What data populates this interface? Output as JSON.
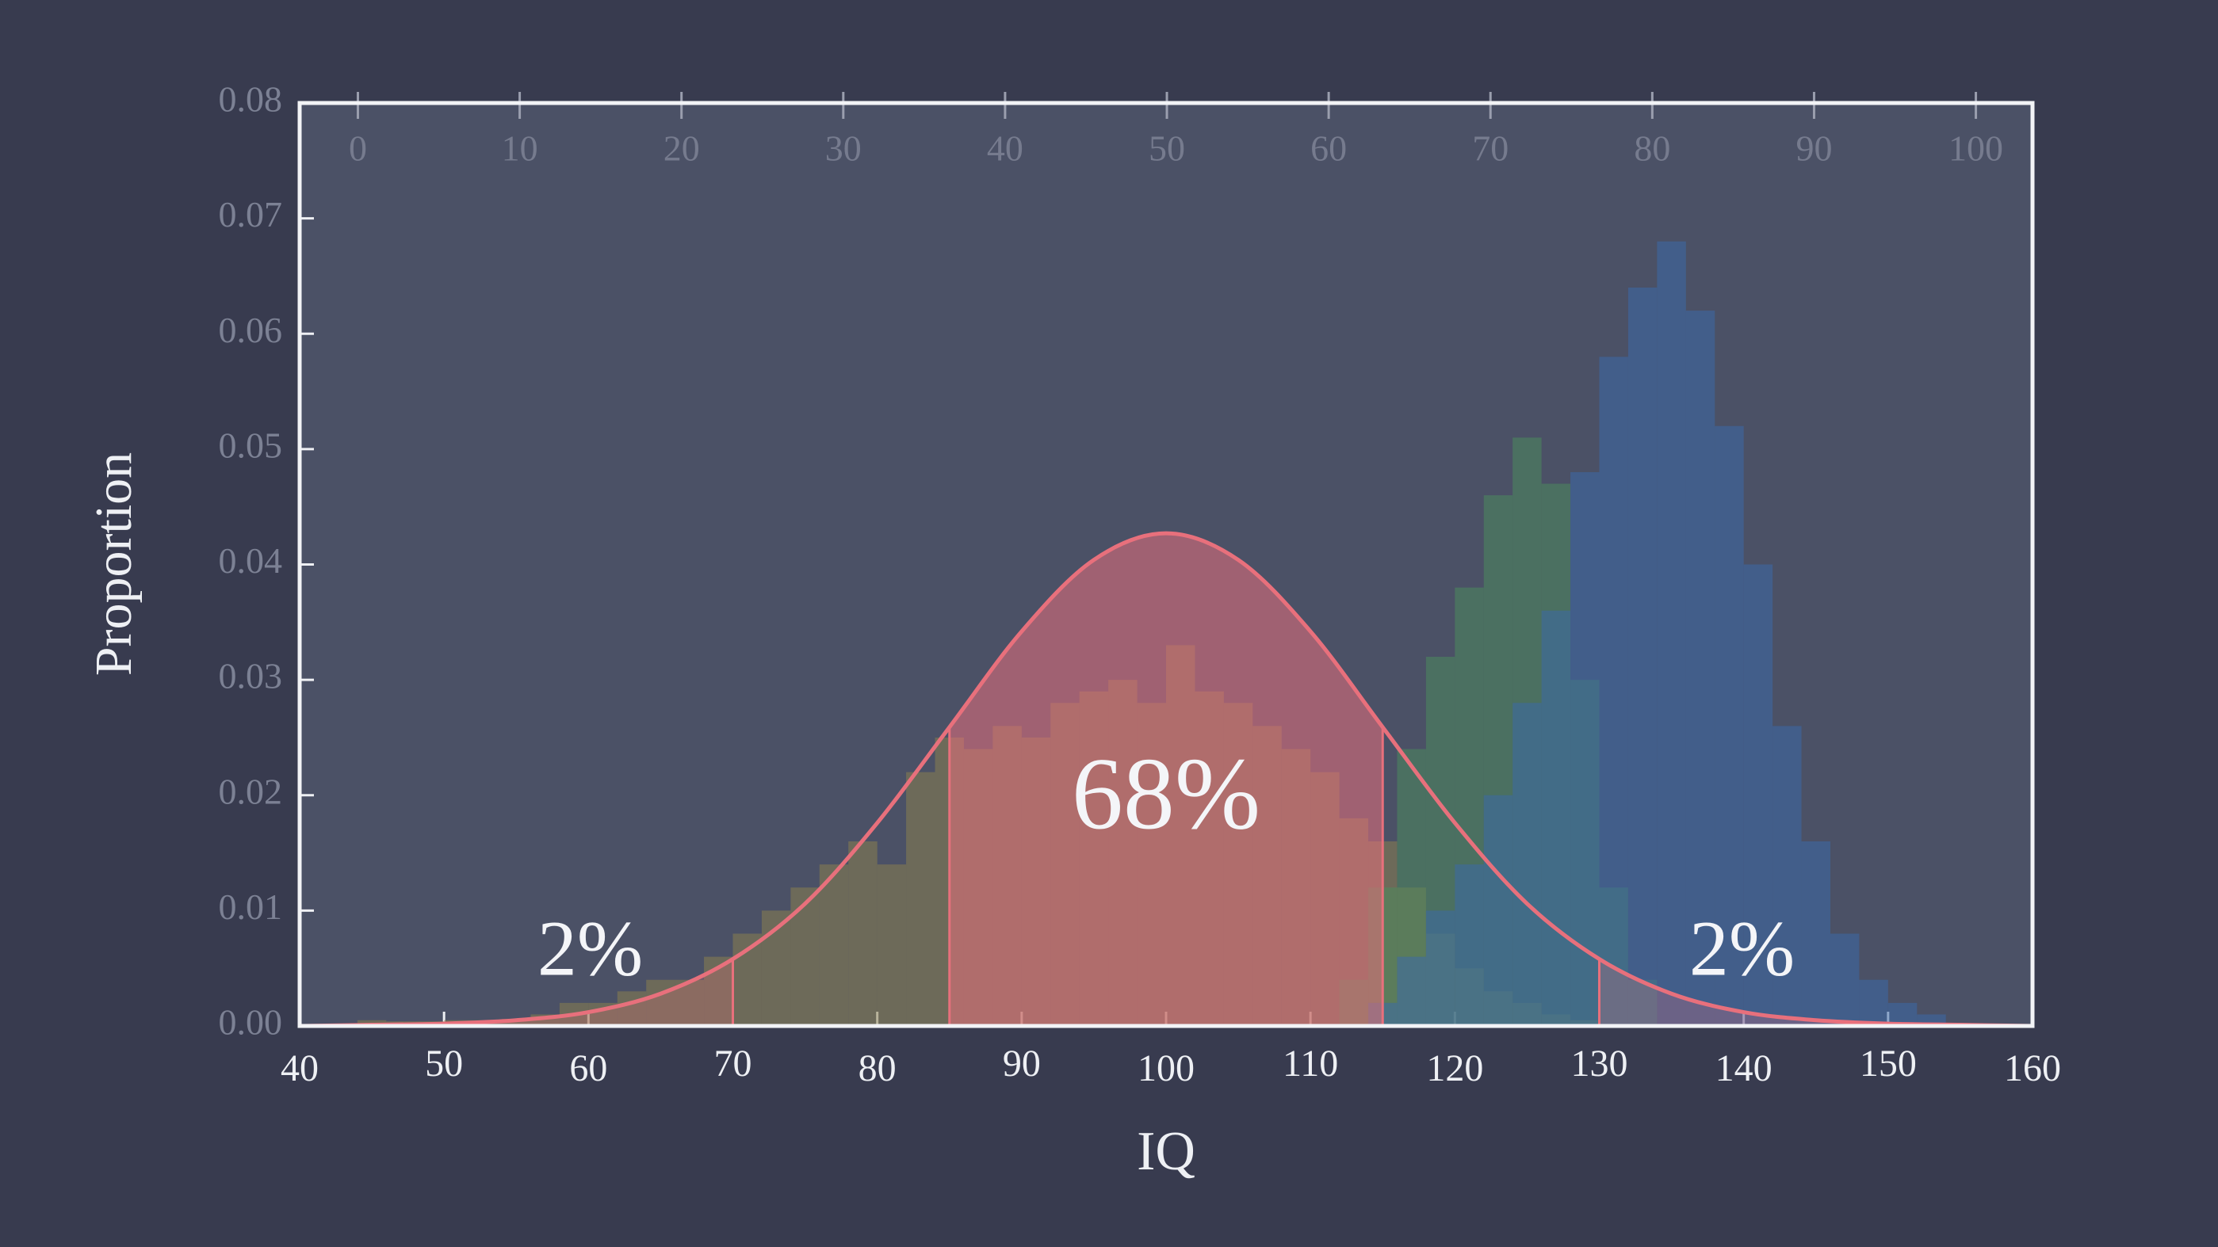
{
  "chart_data": {
    "type": "histogram",
    "xlabel": "IQ",
    "ylabel": "Proportion",
    "xlim": [
      40,
      160
    ],
    "xticks": [
      40,
      50,
      60,
      70,
      80,
      90,
      100,
      110,
      120,
      130,
      140,
      150,
      160
    ],
    "ylim": [
      0,
      0.08
    ],
    "yticks": [
      {
        "value": 0,
        "label": "0.00"
      },
      0.01,
      0.02,
      0.03,
      0.04,
      0.05,
      0.06,
      0.07,
      0.08
    ],
    "x2lim": [
      -3.6,
      103.5
    ],
    "x2ticks": [
      0,
      10,
      20,
      30,
      40,
      50,
      60,
      70,
      80,
      90,
      100
    ],
    "series": [
      {
        "color": "#8a7f4e",
        "bins": [
          44,
          46,
          48,
          50,
          52,
          54,
          56,
          58,
          60,
          62,
          64,
          66,
          68,
          70,
          72,
          74,
          76,
          78,
          80,
          82,
          84,
          86,
          88,
          90,
          92,
          94,
          96,
          98,
          100,
          102,
          104,
          106,
          108,
          110,
          112,
          114,
          116,
          118,
          120,
          122,
          124,
          126,
          128,
          130
        ],
        "values": [
          0.0005,
          0.0004,
          0.0004,
          0.0005,
          0.0005,
          0.0006,
          0.001,
          0.002,
          0.002,
          0.003,
          0.004,
          0.004,
          0.006,
          0.008,
          0.01,
          0.012,
          0.014,
          0.016,
          0.014,
          0.022,
          0.025,
          0.024,
          0.026,
          0.025,
          0.028,
          0.029,
          0.03,
          0.028,
          0.033,
          0.029,
          0.028,
          0.026,
          0.024,
          0.022,
          0.018,
          0.016,
          0.012,
          0.008,
          0.005,
          0.003,
          0.002,
          0.001,
          0.0005
        ]
      },
      {
        "color": "#4d8a5c",
        "bins": [
          112,
          114,
          116,
          118,
          120,
          122,
          124,
          126,
          128,
          130,
          132,
          134
        ],
        "values": [
          0.004,
          0.012,
          0.024,
          0.032,
          0.038,
          0.046,
          0.051,
          0.047,
          0.03,
          0.012,
          0.004
        ]
      },
      {
        "color": "#3d6aa8",
        "bins": [
          114,
          116,
          118,
          120,
          122,
          124,
          126,
          128,
          130,
          132,
          134,
          136,
          138,
          140,
          142,
          144,
          146,
          148,
          150,
          152,
          154
        ],
        "values": [
          0.002,
          0.006,
          0.01,
          0.014,
          0.02,
          0.028,
          0.036,
          0.048,
          0.058,
          0.064,
          0.068,
          0.062,
          0.052,
          0.04,
          0.026,
          0.016,
          0.008,
          0.004,
          0.002,
          0.001
        ]
      }
    ],
    "curve": {
      "color": "#e8707c",
      "x": [
        40,
        45,
        50,
        55,
        60,
        65,
        70,
        75,
        80,
        85,
        90,
        95,
        100,
        105,
        110,
        115,
        120,
        125,
        130,
        135,
        140,
        145,
        150,
        155,
        160
      ],
      "y": [
        0,
        0.0001,
        0.0002,
        0.0005,
        0.0012,
        0.0028,
        0.0058,
        0.0106,
        0.0176,
        0.0259,
        0.0342,
        0.0404,
        0.0427,
        0.0404,
        0.0342,
        0.0259,
        0.0176,
        0.0106,
        0.0058,
        0.0028,
        0.0012,
        0.0005,
        0.0002,
        0.0001,
        0
      ]
    },
    "regions": [
      {
        "x": [
          40,
          70
        ],
        "label": "2%",
        "color": "#e8707c"
      },
      {
        "x": [
          85,
          115
        ],
        "label": "68%",
        "color": "#e8707c"
      },
      {
        "x": [
          130,
          160
        ],
        "label": "2%",
        "color": "#e8707c"
      }
    ],
    "grid": false
  }
}
